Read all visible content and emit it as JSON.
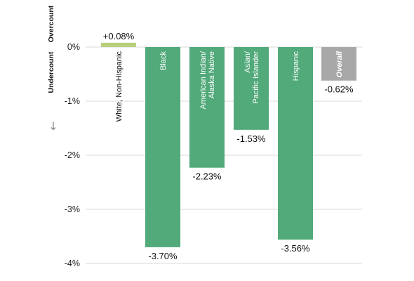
{
  "chart_data": {
    "type": "bar",
    "categories": [
      "White, Non-Hispanic",
      "Black",
      "American Indian/ Alaska Native",
      "Asian/ Pacific Islander",
      "Hispanic",
      "Overall"
    ],
    "category_lines": [
      [
        "White, Non-Hispanic"
      ],
      [
        "Black"
      ],
      [
        "American Indian/",
        "Alaska Native"
      ],
      [
        "Asian/",
        "Pacific Islander"
      ],
      [
        "Hispanic"
      ],
      [
        "Overall"
      ]
    ],
    "values": [
      0.08,
      -3.7,
      -2.23,
      -1.53,
      -3.56,
      -0.62
    ],
    "value_labels": [
      "+0.08%",
      "-3.70%",
      "-2.23%",
      "-1.53%",
      "-3.56%",
      "-0.62%"
    ],
    "ylim": [
      -4,
      0.3
    ],
    "yticks": [
      0,
      -1,
      -2,
      -3,
      -4
    ],
    "ytick_labels": [
      "0%",
      "-1%",
      "-2%",
      "-3%",
      "-4%"
    ],
    "side_labels": {
      "top": "Overcount",
      "bottom": "Undercount"
    },
    "arrow_glyph": "↓",
    "grid": true,
    "colors": {
      "negative": "#52a97a",
      "positive": "#b9cf7c",
      "overall": "#a8a8a8",
      "grid": "#d9d9d9",
      "text": "#111111"
    }
  }
}
